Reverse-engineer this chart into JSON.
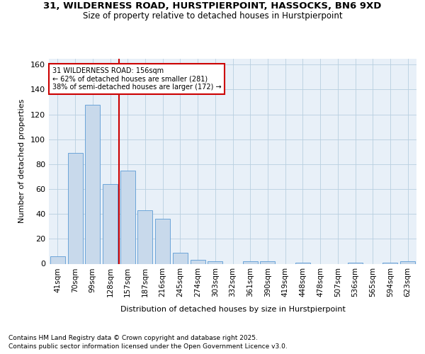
{
  "title1": "31, WILDERNESS ROAD, HURSTPIERPOINT, HASSOCKS, BN6 9XD",
  "title2": "Size of property relative to detached houses in Hurstpierpoint",
  "xlabel": "Distribution of detached houses by size in Hurstpierpoint",
  "ylabel": "Number of detached properties",
  "categories": [
    "41sqm",
    "70sqm",
    "99sqm",
    "128sqm",
    "157sqm",
    "187sqm",
    "216sqm",
    "245sqm",
    "274sqm",
    "303sqm",
    "332sqm",
    "361sqm",
    "390sqm",
    "419sqm",
    "448sqm",
    "478sqm",
    "507sqm",
    "536sqm",
    "565sqm",
    "594sqm",
    "623sqm"
  ],
  "values": [
    6,
    89,
    128,
    64,
    75,
    43,
    36,
    9,
    3,
    2,
    0,
    2,
    2,
    0,
    1,
    0,
    0,
    1,
    0,
    1,
    2
  ],
  "bar_color": "#c8d9eb",
  "bar_edge_color": "#5b9bd5",
  "vline_x_index": 4,
  "vline_color": "#cc0000",
  "annotation_line1": "31 WILDERNESS ROAD: 156sqm",
  "annotation_line2": "← 62% of detached houses are smaller (281)",
  "annotation_line3": "38% of semi-detached houses are larger (172) →",
  "annotation_box_color": "#cc0000",
  "ylim": [
    0,
    165
  ],
  "yticks": [
    0,
    20,
    40,
    60,
    80,
    100,
    120,
    140,
    160
  ],
  "grid_color": "#b8cfe0",
  "bg_color": "#e8f0f8",
  "footer1": "Contains HM Land Registry data © Crown copyright and database right 2025.",
  "footer2": "Contains public sector information licensed under the Open Government Licence v3.0."
}
